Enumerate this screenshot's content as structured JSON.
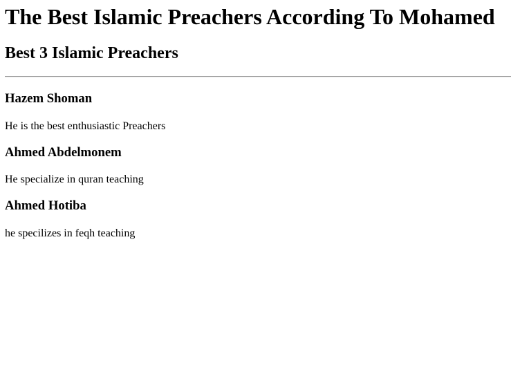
{
  "page": {
    "title": "The Best Islamic Preachers According To Mohamed",
    "subtitle": "Best 3 Islamic Preachers"
  },
  "preachers": [
    {
      "name": "Hazem Shoman",
      "description": "He is the best enthusiastic Preachers"
    },
    {
      "name": "Ahmed Abdelmonem",
      "description": "He specialize in quran teaching"
    },
    {
      "name": "Ahmed Hotiba",
      "description": "he specilizes in feqh teaching"
    }
  ]
}
